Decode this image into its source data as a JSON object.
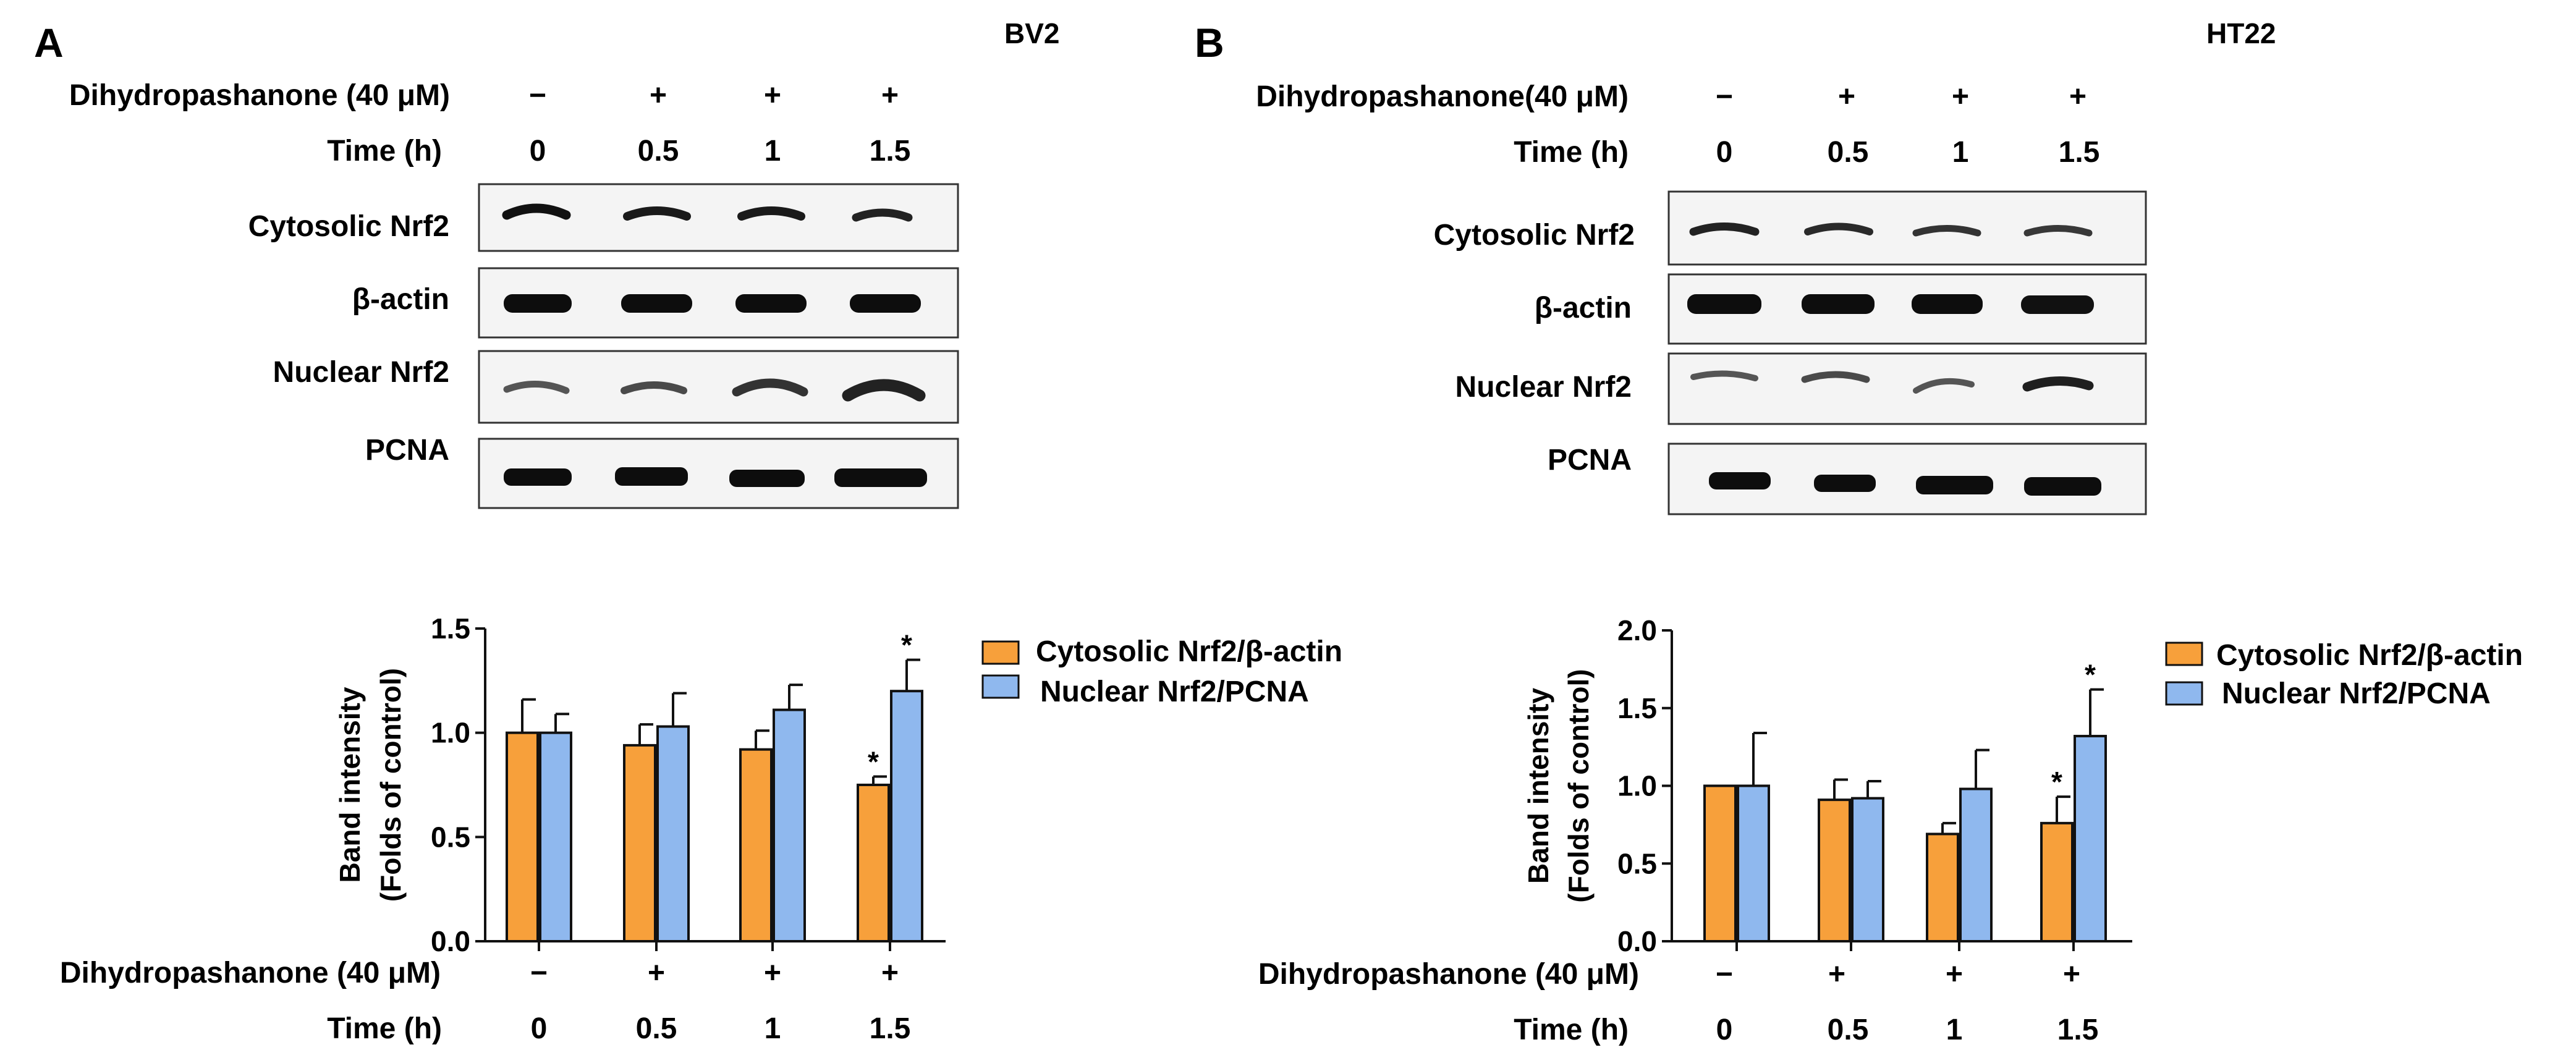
{
  "colors": {
    "cytosolic": "#F7A03B",
    "nuclear": "#8FB8EE",
    "axis": "#111111",
    "blot_bg": "#f4f4f4"
  },
  "panels": [
    {
      "letter": "A",
      "cell_line": "BV2",
      "treatment_label_top": "Dihydropashanone (40 μM)",
      "treatment_label_bottom": "Dihydropashanone (40 μM)",
      "time_label": "Time (h)",
      "treatment_signs": [
        "−",
        "+",
        "+",
        "+"
      ],
      "times": [
        "0",
        "0.5",
        "1",
        "1.5"
      ],
      "blots": [
        "Cytosolic Nrf2",
        "β-actin",
        "Nuclear Nrf2",
        "PCNA"
      ]
    },
    {
      "letter": "B",
      "cell_line": "HT22",
      "treatment_label_top": "Dihydropashanone(40 μM)",
      "treatment_label_bottom": "Dihydropashanone (40 μM)",
      "time_label": "Time (h)",
      "treatment_signs": [
        "−",
        "+",
        "+",
        "+"
      ],
      "times": [
        "0",
        "0.5",
        "1",
        "1.5"
      ],
      "blots": [
        "Cytosolic Nrf2",
        "β-actin",
        "Nuclear Nrf2",
        "PCNA"
      ]
    }
  ],
  "chart_data": [
    {
      "type": "bar",
      "panel": "A",
      "categories": [
        "0",
        "0.5",
        "1",
        "1.5"
      ],
      "ylabel": "Band intensity",
      "ylabel2": "(Folds of control)",
      "ylim": [
        0,
        1.5
      ],
      "yticks": [
        "0.0",
        "0.5",
        "1.0",
        "1.5"
      ],
      "legend_position": "right",
      "series": [
        {
          "name": "Cytosolic Nrf2/β-actin",
          "values": [
            1.0,
            0.94,
            0.92,
            0.75
          ],
          "errors": [
            0.16,
            0.1,
            0.09,
            0.04
          ],
          "significant": [
            false,
            false,
            false,
            true
          ]
        },
        {
          "name": "Nuclear Nrf2/PCNA",
          "values": [
            1.0,
            1.03,
            1.11,
            1.2
          ],
          "errors": [
            0.09,
            0.16,
            0.12,
            0.15
          ],
          "significant": [
            false,
            false,
            false,
            true
          ]
        }
      ]
    },
    {
      "type": "bar",
      "panel": "B",
      "categories": [
        "0",
        "0.5",
        "1",
        "1.5"
      ],
      "ylabel": "Band intensity",
      "ylabel2": "(Folds of control)",
      "ylim": [
        0,
        2.0
      ],
      "yticks": [
        "0.0",
        "0.5",
        "1.0",
        "1.5",
        "2.0"
      ],
      "legend_position": "right",
      "series": [
        {
          "name": "Cytosolic Nrf2/β-actin",
          "values": [
            1.0,
            0.91,
            0.69,
            0.76
          ],
          "errors": [
            0.0,
            0.13,
            0.07,
            0.17
          ],
          "significant": [
            false,
            false,
            false,
            true
          ]
        },
        {
          "name": "Nuclear Nrf2/PCNA",
          "values": [
            1.0,
            0.92,
            0.98,
            1.32
          ],
          "errors": [
            0.34,
            0.11,
            0.25,
            0.3
          ],
          "significant": [
            false,
            false,
            false,
            true
          ]
        }
      ]
    }
  ],
  "significance_mark": "*"
}
